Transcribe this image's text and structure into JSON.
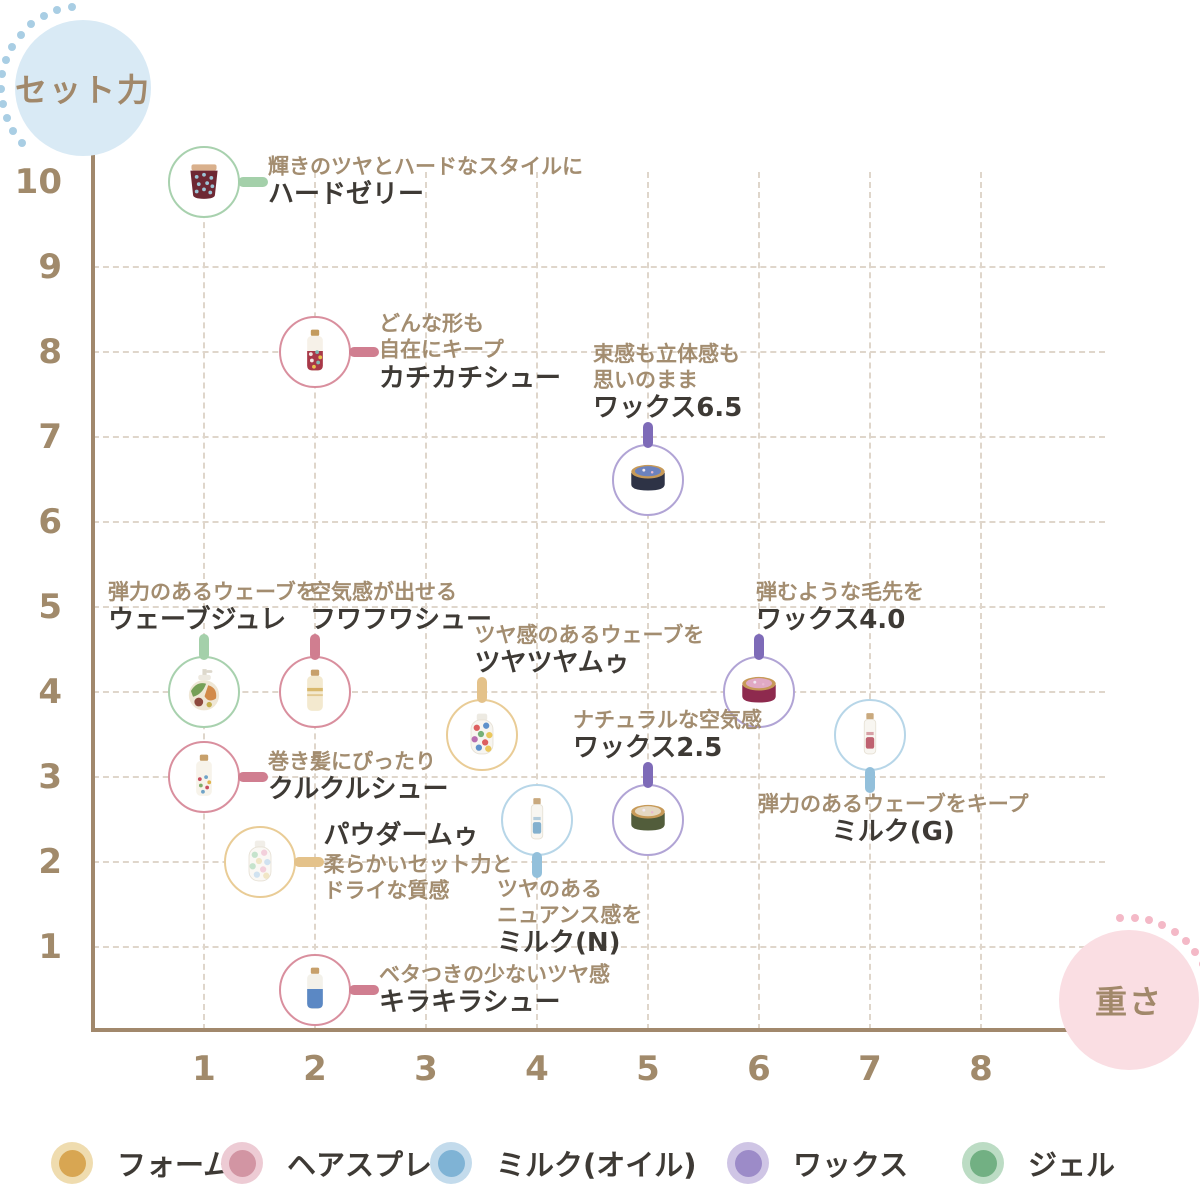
{
  "axes": {
    "y_label": "セット力",
    "x_label": "重さ",
    "axis_color": "#A1886C",
    "tick_color": "#A18A6B",
    "y_badge_color": "#D9EAF5",
    "x_badge_color": "#FADEE3",
    "y_dots_color": "#A9CEE4",
    "x_dots_color": "#F4B9C7"
  },
  "chart_data": {
    "type": "scatter",
    "title": "",
    "xlabel": "重さ",
    "ylabel": "セット力",
    "xlim": [
      0,
      8.5
    ],
    "ylim": [
      0,
      10.5
    ],
    "x_ticks": [
      1,
      2,
      3,
      4,
      5,
      6,
      7,
      8
    ],
    "y_ticks": [
      1,
      2,
      3,
      4,
      5,
      6,
      7,
      8,
      9,
      10
    ],
    "grid": "dashed-both",
    "legend_position": "bottom",
    "categories": {
      "foam": {
        "label": "フォーム",
        "color": "#D8A652",
        "halo": "#EFDCAF",
        "stroke": "#E9CC96",
        "connector": "#E4C28A"
      },
      "spray": {
        "label": "ヘアスプレー",
        "color": "#D295A3",
        "halo": "#EDCBD4",
        "stroke": "#D98F9E",
        "connector": "#D07E90"
      },
      "milk": {
        "label": "ミルク(オイル)",
        "color": "#7FB3D5",
        "halo": "#C3DBEC",
        "stroke": "#B7D6E8",
        "connector": "#93C0DB"
      },
      "wax": {
        "label": "ワックス",
        "color": "#9C8BC8",
        "halo": "#CFC5E5",
        "stroke": "#B1A4D5",
        "connector": "#7E6BB8"
      },
      "gel": {
        "label": "ジェル",
        "color": "#72B083",
        "halo": "#BCDCC4",
        "stroke": "#A8D1AE",
        "connector": "#A4D0AA"
      }
    },
    "points": [
      {
        "id": "hard-jelly",
        "name": "ハードゼリー",
        "desc": [
          "輝きのツヤとハードなスタイルに"
        ],
        "x": 1,
        "y": 10,
        "category": "gel",
        "label": {
          "side": "right"
        },
        "icon": {
          "type": "jar",
          "body": "#6E2834",
          "rim": "#D9B08C",
          "dots": "#9CC4D6"
        }
      },
      {
        "id": "kachikachi-chou",
        "name": "カチカチシュー",
        "desc": [
          "どんな形も",
          "自在にキープ"
        ],
        "x": 2,
        "y": 8,
        "category": "spray",
        "label": {
          "side": "right"
        },
        "icon": {
          "type": "spray",
          "cap": "#C39B5E",
          "top": "#F6F1E8",
          "bottom": "#A83848",
          "dots": [
            "#F2E6E2",
            "#7FB9B2",
            "#E8C24D"
          ]
        }
      },
      {
        "id": "wax-6-5",
        "name": "ワックス6.5",
        "desc": [
          "束感も立体感も",
          "思いのまま"
        ],
        "x": 5,
        "y": 6.5,
        "category": "wax",
        "label": {
          "side": "above",
          "dx": -55
        },
        "icon": {
          "type": "tin",
          "body": "#2E3346",
          "lid": "#6C82BE",
          "rim": "#C79A58"
        }
      },
      {
        "id": "wave-jure",
        "name": "ウェーブジュレ",
        "desc": [
          "弾力のあるウェーブを"
        ],
        "x": 1,
        "y": 4,
        "category": "gel",
        "label": {
          "side": "above",
          "dx": -96
        },
        "icon": {
          "type": "pump"
        }
      },
      {
        "id": "fuwafuwa-chou",
        "name": "フワフワシュー",
        "desc": [
          "空気感が出せる"
        ],
        "x": 2,
        "y": 4,
        "category": "spray",
        "label": {
          "side": "above",
          "dx": -5
        },
        "icon": {
          "type": "spray",
          "cap": "#C7A06B",
          "top": "#F3E9CF",
          "band": "#D9B96E"
        }
      },
      {
        "id": "tsuyatsuya-mou",
        "name": "ツヤツヤムゥ",
        "desc": [
          "ツヤ感のあるウェーブを"
        ],
        "x": 3.5,
        "y": 3.5,
        "category": "foam",
        "label": {
          "side": "above",
          "dx": -7
        },
        "icon": {
          "type": "blob",
          "cap": "#EDEAE2",
          "body": "#F7F5F0",
          "patches": [
            "#D94F4F",
            "#4D86C6",
            "#E8C24D",
            "#67A869",
            "#B05FA8"
          ]
        }
      },
      {
        "id": "wax-4-0",
        "name": "ワックス4.0",
        "desc": [
          "弾むような毛先を"
        ],
        "x": 6,
        "y": 4,
        "category": "wax",
        "label": {
          "side": "above",
          "dx": -3
        },
        "icon": {
          "type": "tin",
          "body": "#8E2A4E",
          "lid": "#E0A9C4",
          "rim": "#C79A58"
        }
      },
      {
        "id": "milk-g",
        "name": "ミルク(G)",
        "desc": [
          "弾力のあるウェーブをキープ"
        ],
        "x": 7,
        "y": 3.5,
        "category": "milk",
        "label": {
          "side": "below",
          "dx": -112,
          "name_align": "center"
        },
        "icon": {
          "type": "slim",
          "cap": "#C9A97E",
          "body": "#F8F6F1",
          "mark": "#B5485A"
        }
      },
      {
        "id": "kurukuru-chou",
        "name": "クルクルシュー",
        "desc": [
          "巻き髪にぴったり"
        ],
        "x": 1,
        "y": 3,
        "category": "spray",
        "label": {
          "side": "right"
        },
        "icon": {
          "type": "spray",
          "cap": "#C7A06B",
          "top": "#F7F3EA",
          "dots": [
            "#C94F5E",
            "#6FA3C8",
            "#E0B34D",
            "#7FAE6A"
          ]
        }
      },
      {
        "id": "wax-2-5",
        "name": "ワックス2.5",
        "desc": [
          "ナチュラルな空気感"
        ],
        "x": 5,
        "y": 2.5,
        "category": "wax",
        "label": {
          "side": "above",
          "dx": -75
        },
        "icon": {
          "type": "tin",
          "body": "#525D3B",
          "lid": "#E5D8C2",
          "rim": "#C79A58"
        }
      },
      {
        "id": "powder-mou",
        "name": "パウダームゥ",
        "desc": [
          "柔らかいセット力と",
          "ドライな質感"
        ],
        "x": 1.5,
        "y": 2,
        "category": "foam",
        "label": {
          "side": "right",
          "name_first": true
        },
        "icon": {
          "type": "blob",
          "cap": "#F1EEE8",
          "body": "#FAF8F4",
          "patches": [
            "#BFE0C8",
            "#F2CBD8",
            "#CBDFF0",
            "#EFE3C0"
          ]
        }
      },
      {
        "id": "milk-n",
        "name": "ミルク(N)",
        "desc": [
          "ツヤのある",
          "ニュアンス感を"
        ],
        "x": 4,
        "y": 2.5,
        "category": "milk",
        "label": {
          "side": "below",
          "dx": -40
        },
        "icon": {
          "type": "slim",
          "cap": "#C9A97E",
          "body": "#F8F6F1",
          "mark": "#6FA3C8"
        }
      },
      {
        "id": "kirakira-chou",
        "name": "キラキラシュー",
        "desc": [
          "ベタつきの少ないツヤ感"
        ],
        "x": 2,
        "y": 0.5,
        "category": "spray",
        "label": {
          "side": "right"
        },
        "icon": {
          "type": "spray",
          "cap": "#C7A06B",
          "top": "#F3F1EA",
          "bottom": "#5B88C4"
        }
      }
    ]
  },
  "legend": {
    "items": [
      {
        "cat": "foam",
        "label": "フォーム"
      },
      {
        "cat": "spray",
        "label": "ヘアスプレー"
      },
      {
        "cat": "milk",
        "label": "ミルク(オイル)"
      },
      {
        "cat": "wax",
        "label": "ワックス"
      },
      {
        "cat": "gel",
        "label": "ジェル"
      }
    ]
  }
}
